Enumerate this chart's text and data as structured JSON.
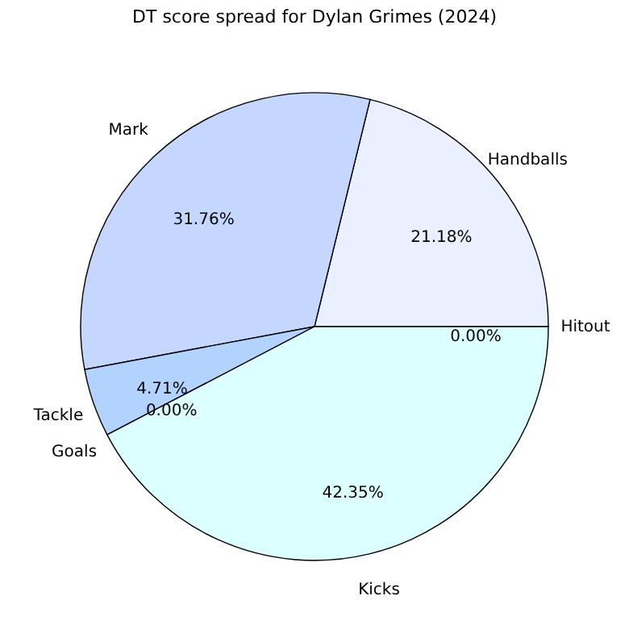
{
  "chart_data": {
    "type": "pie",
    "title": "DT score spread for Dylan Grimes (2024)",
    "categories": [
      "Handballs",
      "Mark",
      "Tackle",
      "Goals",
      "Kicks",
      "Hitout"
    ],
    "values": [
      21.18,
      31.76,
      4.71,
      0.0,
      42.35,
      0.0
    ],
    "value_labels": [
      "21.18%",
      "31.76%",
      "4.71%",
      "0.00%",
      "42.35%",
      "0.00%"
    ],
    "colors": [
      "#eaf0ff",
      "#c6d7ff",
      "#b3d3ff",
      "#a6c8ff",
      "#dcffff",
      "#d0e8ff"
    ],
    "legend": false
  }
}
